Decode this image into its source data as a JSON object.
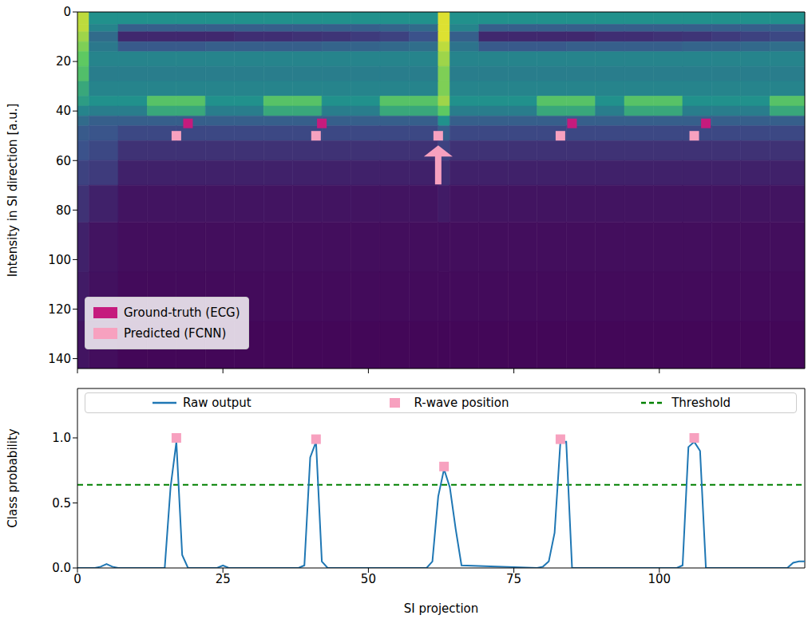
{
  "chart_data": [
    {
      "type": "heatmap",
      "ylabel": "Intensity in SI direction [a.u.]",
      "xlim": [
        0,
        125
      ],
      "xticks": [
        0,
        25,
        50,
        75,
        100
      ],
      "ylim": [
        144,
        0
      ],
      "yticks": [
        0,
        20,
        40,
        60,
        80,
        100,
        120,
        140
      ],
      "tick_labels": "y",
      "legend": "lower left",
      "cell_x": [
        0,
        2,
        7,
        12,
        17,
        22,
        27,
        32,
        37,
        42,
        47,
        52,
        57,
        62,
        64,
        69,
        74,
        79,
        84,
        89,
        94,
        99,
        104,
        109,
        114,
        119,
        125
      ],
      "cell_y": [
        0,
        5,
        8,
        12,
        16,
        22,
        28,
        34,
        38,
        42,
        46,
        52,
        60,
        70,
        85,
        105,
        125,
        144
      ],
      "color_range": [
        0,
        1
      ],
      "cells": [
        [
          0.9,
          0.5,
          0.5,
          0.5,
          0.5,
          0.5,
          0.5,
          0.5,
          0.5,
          0.5,
          0.5,
          0.5,
          0.5,
          0.95,
          0.5,
          0.5,
          0.5,
          0.5,
          0.5,
          0.5,
          0.5,
          0.5,
          0.5,
          0.5,
          0.5,
          0.5
        ],
        [
          0.9,
          0.45,
          0.3,
          0.3,
          0.3,
          0.3,
          0.3,
          0.3,
          0.3,
          0.3,
          0.3,
          0.32,
          0.35,
          0.95,
          0.45,
          0.3,
          0.3,
          0.3,
          0.3,
          0.3,
          0.3,
          0.3,
          0.3,
          0.3,
          0.3,
          0.3
        ],
        [
          0.85,
          0.35,
          0.12,
          0.12,
          0.12,
          0.12,
          0.14,
          0.14,
          0.15,
          0.16,
          0.18,
          0.2,
          0.25,
          0.95,
          0.3,
          0.12,
          0.12,
          0.12,
          0.12,
          0.14,
          0.14,
          0.15,
          0.16,
          0.18,
          0.2,
          0.22
        ],
        [
          0.8,
          0.4,
          0.28,
          0.28,
          0.28,
          0.3,
          0.3,
          0.3,
          0.3,
          0.32,
          0.32,
          0.34,
          0.36,
          0.9,
          0.38,
          0.28,
          0.28,
          0.28,
          0.3,
          0.3,
          0.3,
          0.3,
          0.32,
          0.32,
          0.34,
          0.36
        ],
        [
          0.75,
          0.45,
          0.45,
          0.45,
          0.45,
          0.45,
          0.45,
          0.45,
          0.45,
          0.45,
          0.45,
          0.45,
          0.45,
          0.85,
          0.45,
          0.45,
          0.45,
          0.45,
          0.45,
          0.45,
          0.45,
          0.45,
          0.45,
          0.45,
          0.45,
          0.45
        ],
        [
          0.7,
          0.42,
          0.42,
          0.42,
          0.42,
          0.42,
          0.42,
          0.42,
          0.42,
          0.42,
          0.42,
          0.42,
          0.42,
          0.8,
          0.42,
          0.42,
          0.42,
          0.42,
          0.42,
          0.42,
          0.42,
          0.42,
          0.42,
          0.42,
          0.42,
          0.42
        ],
        [
          0.6,
          0.45,
          0.45,
          0.45,
          0.45,
          0.45,
          0.45,
          0.45,
          0.45,
          0.45,
          0.45,
          0.45,
          0.45,
          0.8,
          0.45,
          0.45,
          0.45,
          0.45,
          0.45,
          0.45,
          0.45,
          0.45,
          0.45,
          0.45,
          0.45,
          0.45
        ],
        [
          0.55,
          0.5,
          0.5,
          0.72,
          0.72,
          0.5,
          0.5,
          0.72,
          0.72,
          0.5,
          0.5,
          0.72,
          0.72,
          0.85,
          0.5,
          0.5,
          0.5,
          0.72,
          0.72,
          0.5,
          0.72,
          0.72,
          0.5,
          0.5,
          0.5,
          0.72
        ],
        [
          0.45,
          0.42,
          0.42,
          0.6,
          0.6,
          0.42,
          0.42,
          0.6,
          0.6,
          0.42,
          0.42,
          0.6,
          0.6,
          0.75,
          0.42,
          0.42,
          0.42,
          0.6,
          0.6,
          0.42,
          0.6,
          0.6,
          0.42,
          0.42,
          0.42,
          0.6
        ],
        [
          0.35,
          0.3,
          0.3,
          0.3,
          0.3,
          0.3,
          0.3,
          0.3,
          0.3,
          0.3,
          0.3,
          0.3,
          0.3,
          0.5,
          0.3,
          0.3,
          0.3,
          0.3,
          0.3,
          0.3,
          0.3,
          0.3,
          0.3,
          0.3,
          0.3,
          0.3
        ],
        [
          0.28,
          0.26,
          0.22,
          0.22,
          0.22,
          0.22,
          0.22,
          0.22,
          0.22,
          0.22,
          0.22,
          0.22,
          0.22,
          0.3,
          0.22,
          0.22,
          0.22,
          0.22,
          0.22,
          0.22,
          0.22,
          0.22,
          0.22,
          0.22,
          0.22,
          0.22
        ],
        [
          0.25,
          0.22,
          0.15,
          0.15,
          0.15,
          0.15,
          0.15,
          0.15,
          0.15,
          0.15,
          0.15,
          0.15,
          0.15,
          0.2,
          0.15,
          0.15,
          0.15,
          0.15,
          0.15,
          0.15,
          0.15,
          0.15,
          0.15,
          0.15,
          0.15,
          0.15
        ],
        [
          0.2,
          0.18,
          0.1,
          0.1,
          0.1,
          0.1,
          0.1,
          0.1,
          0.1,
          0.1,
          0.1,
          0.1,
          0.1,
          0.14,
          0.1,
          0.1,
          0.1,
          0.1,
          0.1,
          0.1,
          0.1,
          0.1,
          0.1,
          0.1,
          0.1,
          0.1
        ],
        [
          0.15,
          0.1,
          0.06,
          0.06,
          0.06,
          0.06,
          0.06,
          0.06,
          0.06,
          0.06,
          0.06,
          0.06,
          0.06,
          0.08,
          0.06,
          0.06,
          0.06,
          0.06,
          0.06,
          0.06,
          0.06,
          0.06,
          0.06,
          0.06,
          0.06,
          0.06
        ],
        [
          0.1,
          0.06,
          0.04,
          0.04,
          0.04,
          0.04,
          0.04,
          0.04,
          0.04,
          0.04,
          0.04,
          0.04,
          0.04,
          0.04,
          0.04,
          0.04,
          0.04,
          0.04,
          0.04,
          0.04,
          0.04,
          0.04,
          0.04,
          0.04,
          0.04,
          0.04
        ],
        [
          0.08,
          0.05,
          0.03,
          0.03,
          0.03,
          0.03,
          0.03,
          0.03,
          0.03,
          0.03,
          0.03,
          0.03,
          0.03,
          0.03,
          0.03,
          0.03,
          0.03,
          0.03,
          0.03,
          0.03,
          0.03,
          0.03,
          0.03,
          0.03,
          0.03,
          0.03
        ],
        [
          0.06,
          0.04,
          0.02,
          0.02,
          0.02,
          0.02,
          0.02,
          0.02,
          0.02,
          0.02,
          0.02,
          0.02,
          0.02,
          0.02,
          0.02,
          0.02,
          0.02,
          0.02,
          0.02,
          0.02,
          0.02,
          0.02,
          0.02,
          0.02,
          0.02,
          0.02
        ]
      ],
      "series": [
        {
          "name": "Ground-truth (ECG)",
          "type": "scatter",
          "marker": "square",
          "color": "#c51b7d",
          "x": [
            19,
            42,
            85,
            108
          ],
          "values": [
            45,
            45,
            45,
            45
          ]
        },
        {
          "name": "Predicted (FCNN)",
          "type": "scatter",
          "marker": "square",
          "color": "#f7a1bf",
          "x": [
            17,
            41,
            62,
            83,
            106
          ],
          "values": [
            50,
            50,
            50,
            50,
            50
          ]
        }
      ]
    },
    {
      "type": "line",
      "xlabel": "SI projection",
      "ylabel": "Class probability",
      "xlim": [
        0,
        125
      ],
      "xticks": [
        0,
        25,
        50,
        75,
        100
      ],
      "ylim": [
        0,
        1.38
      ],
      "yticks": [
        {
          "value": 0,
          "label": "0.0"
        },
        {
          "value": 0.5,
          "label": "0.5"
        },
        {
          "value": 1,
          "label": "1.0"
        }
      ],
      "legend": "top",
      "series": [
        {
          "name": "Raw output",
          "type": "line",
          "color": "#1f77b4",
          "x": [
            0,
            3,
            4,
            5,
            6,
            7,
            15,
            16,
            17,
            18,
            19,
            24,
            25,
            26,
            38,
            39,
            40,
            41,
            42,
            43,
            60,
            61,
            62,
            63,
            64,
            65,
            66,
            79,
            80,
            81,
            82,
            83,
            84,
            85,
            103,
            104,
            105,
            106,
            107,
            108,
            121,
            122,
            123,
            124,
            125
          ],
          "values": [
            0,
            0,
            0.01,
            0.03,
            0.01,
            0,
            0,
            0.62,
            0.97,
            0.1,
            0,
            0,
            0.02,
            0,
            0,
            0.02,
            0.85,
            0.97,
            0.05,
            0,
            0,
            0.05,
            0.55,
            0.76,
            0.62,
            0.3,
            0.02,
            0,
            0.01,
            0.05,
            0.27,
            0.97,
            0.97,
            0,
            0,
            0.02,
            0.93,
            0.97,
            0.9,
            0,
            0,
            0,
            0.04,
            0.05,
            0.05
          ]
        },
        {
          "name": "R-wave position",
          "type": "scatter",
          "marker": "square",
          "color": "#f7a1bf",
          "x": [
            17,
            41,
            63,
            83,
            106
          ],
          "values": [
            1,
            0.99,
            0.78,
            0.99,
            1
          ]
        },
        {
          "name": "Threshold",
          "type": "hline",
          "line_style": "dashed",
          "color": "#008000",
          "values": [
            0.64
          ]
        }
      ]
    }
  ]
}
